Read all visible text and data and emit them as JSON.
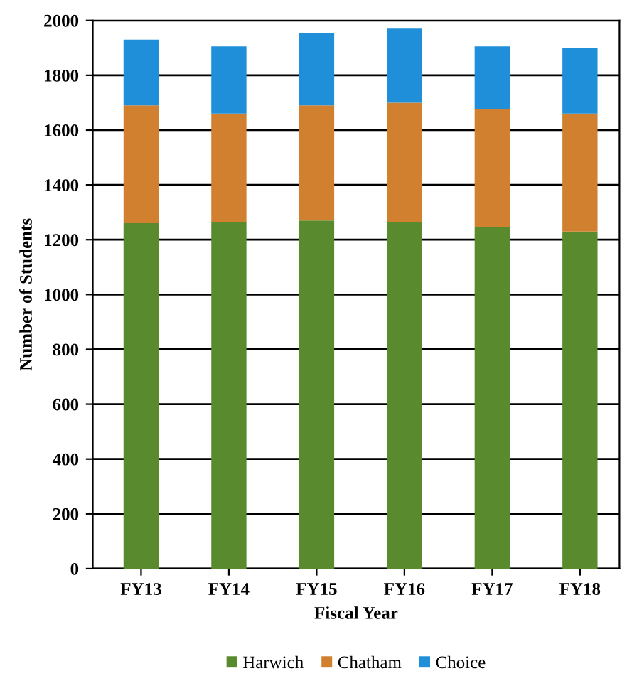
{
  "chart_data": {
    "type": "bar",
    "stacked": true,
    "xlabel": "Fiscal Year",
    "ylabel": "Number of Students",
    "categories": [
      "FY13",
      "FY14",
      "FY15",
      "FY16",
      "FY17",
      "FY18"
    ],
    "series": [
      {
        "name": "Harwich",
        "color": "#5a8a2e",
        "values": [
          1260,
          1265,
          1270,
          1265,
          1245,
          1230
        ]
      },
      {
        "name": "Chatham",
        "color": "#d0802e",
        "values": [
          430,
          395,
          420,
          435,
          430,
          430
        ]
      },
      {
        "name": "Choice",
        "color": "#1e8fd8",
        "values": [
          240,
          245,
          265,
          270,
          230,
          240
        ]
      }
    ],
    "ylim": [
      0,
      2000
    ],
    "yticks": [
      0,
      200,
      400,
      600,
      800,
      1000,
      1200,
      1400,
      1600,
      1800,
      2000
    ],
    "grid": "y",
    "legend": "bottom"
  }
}
